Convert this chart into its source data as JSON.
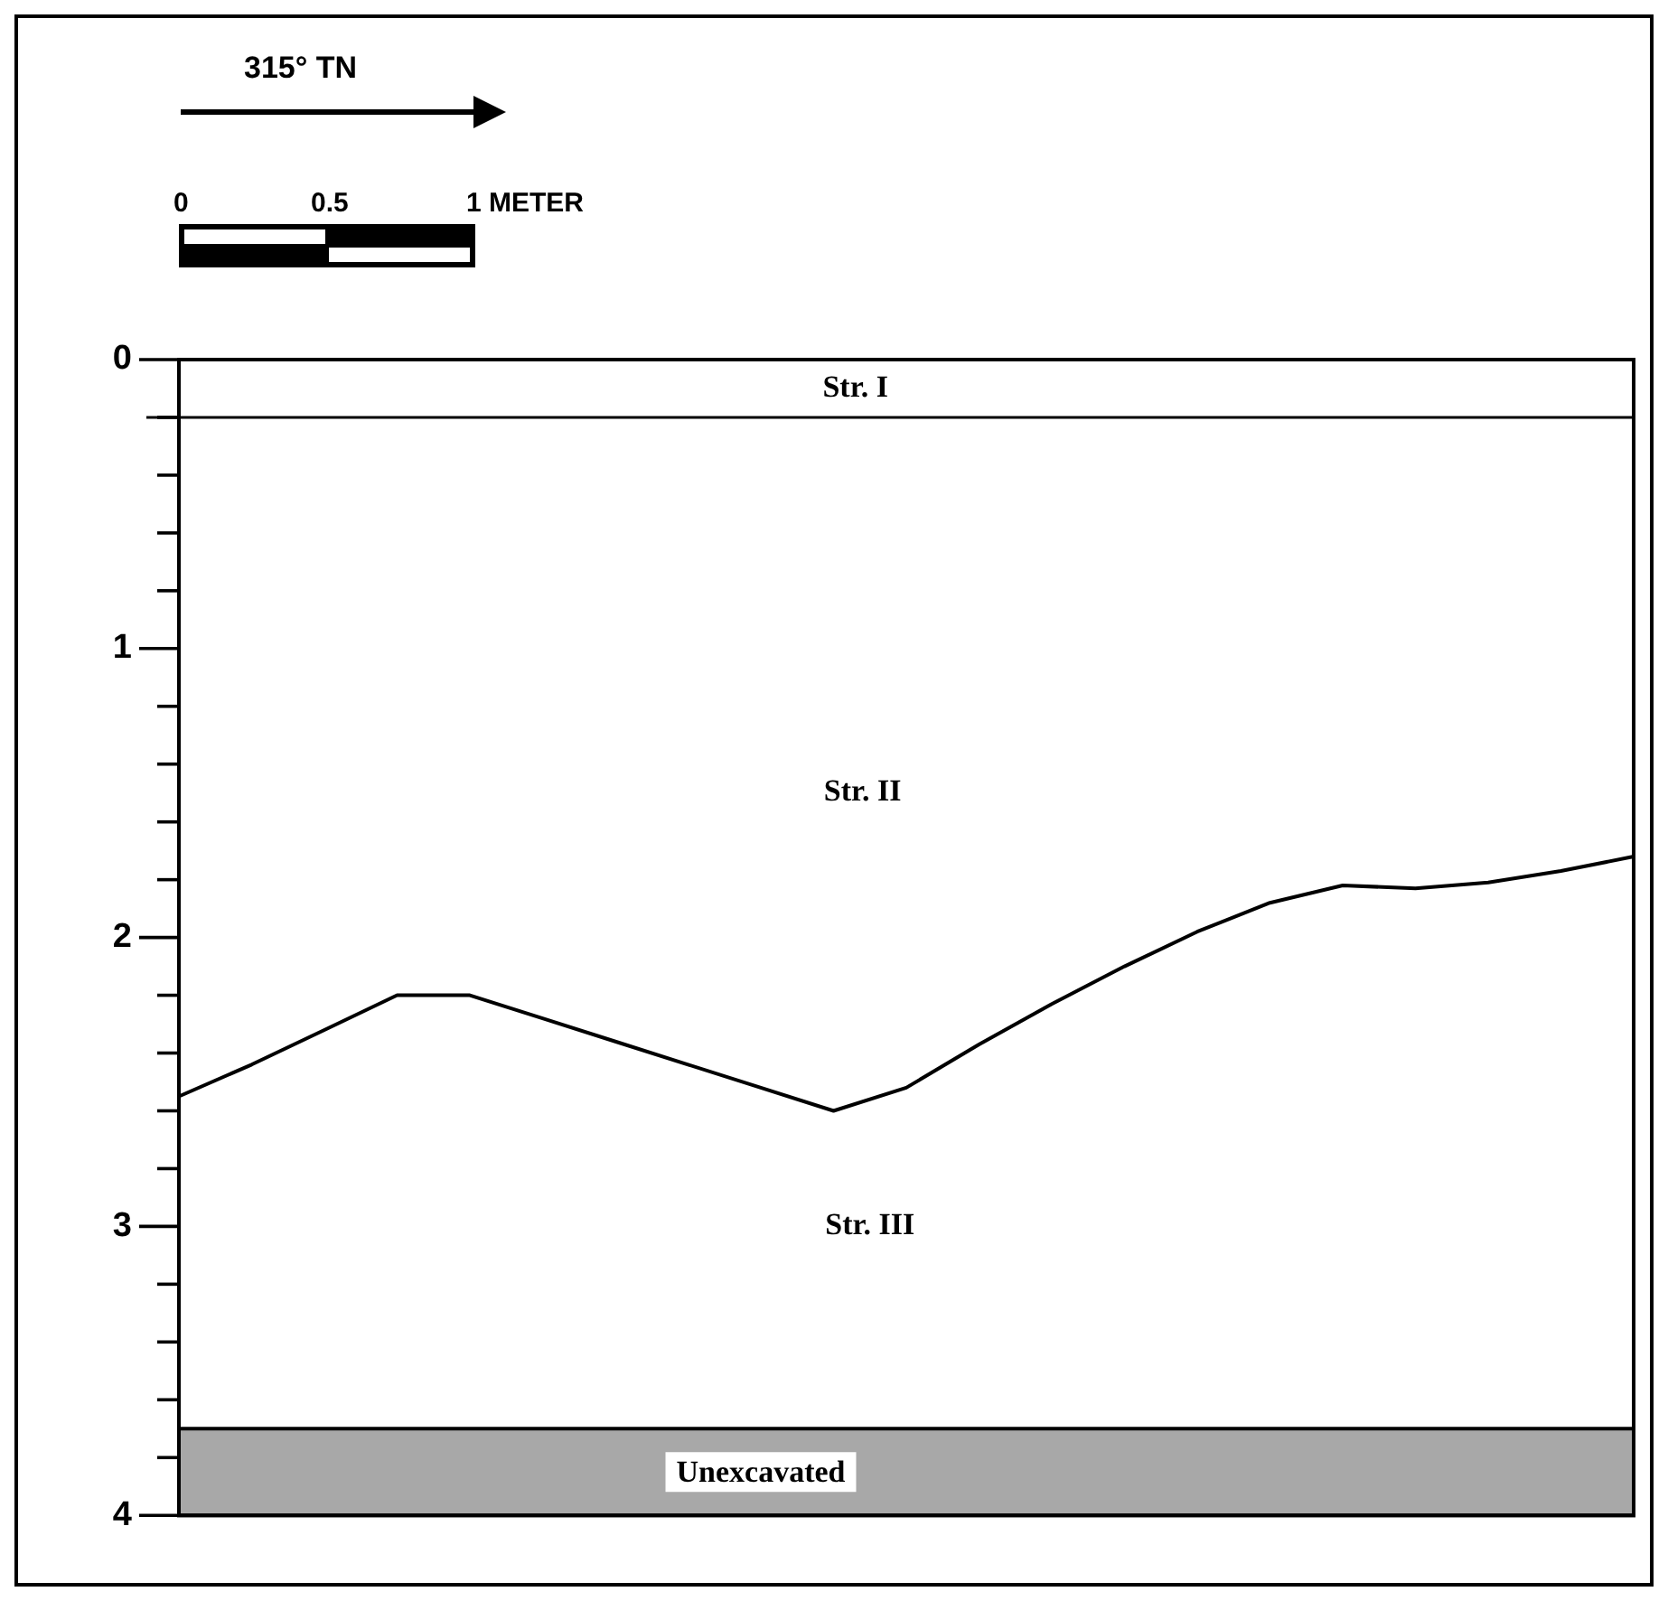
{
  "chart_data": {
    "type": "line",
    "annotations": [
      "315° TN",
      "0",
      "0.5",
      "1 METER",
      "Str. I",
      "Str. II",
      "Str. III"
    ],
    "categories": [
      null,
      null,
      null,
      null,
      null,
      null,
      null,
      null,
      null,
      null,
      null,
      null,
      null,
      null,
      null,
      null,
      null,
      null,
      null,
      null,
      null
    ],
    "series": [
      {
        "color": "#000000",
        "values": [
          2.55,
          2.44,
          2.32,
          2.2,
          2.2,
          2.28,
          2.36,
          2.44,
          2.52,
          2.6,
          2.52,
          2.37,
          2.23,
          2.1,
          1.98,
          1.88,
          1.82,
          1.83,
          1.81,
          1.77,
          1.72
        ]
      }
    ],
    "ylim": [
      4,
      0
    ],
    "yticks": [
      0,
      {
        "value": 0.2,
        "label": null
      },
      {
        "value": 0.4,
        "label": null
      },
      {
        "value": 0.6,
        "label": null
      },
      {
        "value": 0.8,
        "label": null
      },
      1,
      {
        "value": 1.2,
        "label": null
      },
      {
        "value": 1.4,
        "label": null
      },
      {
        "value": 1.6,
        "label": null
      },
      {
        "value": 1.8,
        "label": null
      },
      2,
      {
        "value": 2.2,
        "label": null
      },
      {
        "value": 2.4,
        "label": null
      },
      {
        "value": 2.6,
        "label": null
      },
      {
        "value": 2.8,
        "label": null
      },
      3,
      {
        "value": 3.2,
        "label": null
      },
      {
        "value": 3.4,
        "label": null
      },
      {
        "value": 3.6,
        "label": null
      },
      {
        "value": 3.8,
        "label": null
      },
      4
    ],
    "ref_lines": [
      {
        "axis": "y",
        "value": 0.2,
        "color": "#000000"
      }
    ],
    "bands": [
      {
        "axis": "y",
        "from": 3.7,
        "to": 4,
        "label": "Unexcavated",
        "color": "#a8a8a8"
      }
    ],
    "tick_labels": "y",
    "grid": false,
    "legend": false,
    "marker": "none",
    "line_style": "solid"
  }
}
